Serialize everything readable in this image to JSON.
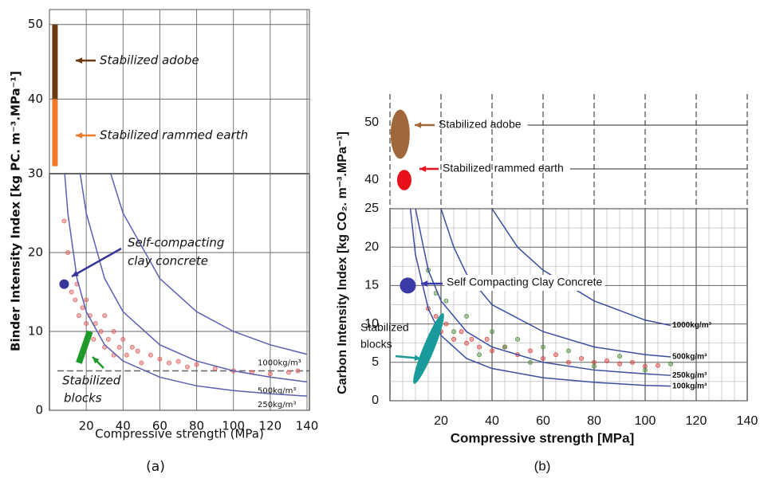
{
  "chart_data": [
    {
      "type": "scatter",
      "caption": "(a)",
      "x_label": "Compressive strength (MPa)",
      "y_label": "Binder Intensity Index [kg PC. m⁻³.MPa⁻¹]",
      "xlim": [
        0,
        140
      ],
      "xticks": [
        20,
        40,
        60,
        80,
        100,
        120,
        140
      ],
      "ylim": [
        0,
        52
      ],
      "yticks": [
        0,
        10,
        20,
        30,
        40,
        50
      ],
      "y_break": [
        30,
        30
      ],
      "grid": true,
      "minor_grid": false,
      "hline": 5,
      "series": [
        {
          "color": "#e05a5a",
          "x": [
            8,
            10,
            12,
            14,
            15,
            16,
            18,
            20,
            20,
            22,
            24,
            25,
            28,
            30,
            30,
            32,
            35,
            35,
            38,
            40,
            42,
            45,
            48,
            50,
            55,
            60,
            65,
            70,
            75,
            80,
            90,
            100,
            110,
            120,
            130,
            135
          ],
          "y": [
            24,
            20,
            15,
            14,
            16,
            12,
            13,
            11,
            14,
            12,
            9,
            11,
            10,
            8,
            12,
            9,
            10,
            7,
            8,
            9,
            7,
            8,
            7.5,
            6,
            7,
            6.5,
            6,
            6.2,
            5.5,
            5.8,
            5.3,
            5,
            4.8,
            4.6,
            4.8,
            5
          ]
        }
      ],
      "curves": [
        {
          "label": "1000kg/m³",
          "color": "#5a5fb0",
          "x": [
            33.3,
            40,
            60,
            80,
            100,
            120,
            140
          ],
          "y": [
            30,
            25,
            16.7,
            12.5,
            10,
            8.3,
            7.1
          ]
        },
        {
          "label": "500kg/m³",
          "color": "#5a5fb0",
          "x": [
            16.7,
            20,
            30,
            40,
            60,
            80,
            100,
            120,
            140
          ],
          "y": [
            30,
            25,
            16.7,
            12.5,
            8.3,
            6.25,
            5,
            4.2,
            3.6
          ]
        },
        {
          "label": "250kg/m³",
          "color": "#5a5fb0",
          "x": [
            8.3,
            10,
            15,
            20,
            30,
            40,
            60,
            80,
            100,
            120,
            140
          ],
          "y": [
            30,
            25,
            16.7,
            12.5,
            8.3,
            6.25,
            4.2,
            3.1,
            2.5,
            2.1,
            1.8
          ]
        }
      ],
      "regions": [
        {
          "label": [
            "Stabilized adobe"
          ],
          "marker": "bar",
          "color": "#6b3a12",
          "x": [
            3,
            3
          ],
          "y": [
            40,
            50
          ]
        },
        {
          "label": [
            "Stabilized rammed earth"
          ],
          "marker": "bar",
          "color": "#f07a2a",
          "x": [
            3,
            3
          ],
          "y": [
            31,
            40
          ]
        },
        {
          "label": [
            "Self-compacting",
            "clay concrete"
          ],
          "marker": "dot",
          "color": "#35359a",
          "x": [
            8,
            8
          ],
          "y": [
            16,
            16
          ]
        },
        {
          "label": [
            "Stabilized",
            "blocks"
          ],
          "marker": "bar",
          "color": "#1f9a2a",
          "x": [
            16,
            22
          ],
          "y": [
            6,
            10
          ]
        }
      ]
    },
    {
      "type": "scatter",
      "caption": "(b)",
      "x_label": "Compressive strength [MPa]",
      "y_label": "Carbon Intensity Index [kg CO₂. m⁻³.MPa⁻¹]",
      "xlim": [
        0,
        140
      ],
      "xticks": [
        20,
        40,
        60,
        80,
        100,
        120,
        140
      ],
      "ylim": [
        0,
        55
      ],
      "yticks": [
        0,
        5,
        10,
        15,
        20,
        25,
        40,
        50
      ],
      "y_break": [
        25,
        35
      ],
      "grid": true,
      "minor_grid": true,
      "series": [
        {
          "color": "#d94040",
          "x": [
            15,
            18,
            20,
            22,
            25,
            28,
            30,
            32,
            35,
            38,
            40,
            45,
            50,
            55,
            60,
            65,
            70,
            75,
            80,
            85,
            90,
            95,
            100,
            105
          ],
          "y": [
            12,
            11,
            9,
            10,
            8,
            9,
            7.5,
            8,
            7,
            8,
            6.5,
            7,
            6,
            6.5,
            5.5,
            6,
            5,
            5.5,
            5,
            5.2,
            4.8,
            5,
            4.5,
            4.6
          ]
        },
        {
          "color": "#4d8a3a",
          "x": [
            15,
            18,
            22,
            25,
            30,
            35,
            40,
            45,
            50,
            55,
            60,
            70,
            80,
            90,
            100,
            110
          ],
          "y": [
            17,
            14,
            13,
            9,
            11,
            6,
            9,
            7,
            8,
            5,
            7,
            6.5,
            4.5,
            5.8,
            4,
            4.8
          ]
        }
      ],
      "curves": [
        {
          "label": "1000kg/m³",
          "color": "#3a4fa0",
          "x": [
            40,
            50,
            60,
            80,
            100,
            110
          ],
          "y": [
            25,
            20,
            17,
            13,
            10.5,
            9.8
          ]
        },
        {
          "label": "500kg/m³",
          "color": "#3a4fa0",
          "x": [
            20,
            25,
            30,
            40,
            60,
            80,
            100,
            110
          ],
          "y": [
            25,
            20,
            16.5,
            12.5,
            9,
            7,
            6,
            5.7
          ]
        },
        {
          "label": "250kg/m³",
          "color": "#3a4fa0",
          "x": [
            10,
            15,
            20,
            30,
            40,
            60,
            80,
            100,
            110
          ],
          "y": [
            25,
            17,
            13,
            9,
            7,
            5,
            4,
            3.5,
            3.3
          ]
        },
        {
          "label": "100kg/m³",
          "color": "#3a4fa0",
          "x": [
            8,
            10,
            15,
            20,
            30,
            40,
            60,
            80,
            100,
            110
          ],
          "y": [
            25,
            19,
            12,
            8.5,
            5.5,
            4.2,
            3,
            2.4,
            2,
            1.9
          ]
        }
      ],
      "regions": [
        {
          "label": [
            "Stabilized adobe"
          ],
          "marker": "ellipse",
          "color": "#a0683a",
          "x": [
            4,
            4
          ],
          "y": [
            44,
            52
          ]
        },
        {
          "label": [
            "Stabilized rammed earth"
          ],
          "marker": "ellipse",
          "color": "#e8101a",
          "x": [
            5.6,
            5.6
          ],
          "y": [
            38.5,
            41.5
          ]
        },
        {
          "label": [
            "Self Compacting Clay Concrete"
          ],
          "marker": "dot",
          "color": "#3a3aa8",
          "x": [
            7,
            7
          ],
          "y": [
            15,
            15
          ]
        },
        {
          "label": [
            "Stabilized",
            "blocks"
          ],
          "marker": "ellipse",
          "color": "#1a9a9a",
          "x": [
            9.7,
            20.6
          ],
          "y": [
            2.4,
            11.2
          ]
        }
      ]
    }
  ]
}
